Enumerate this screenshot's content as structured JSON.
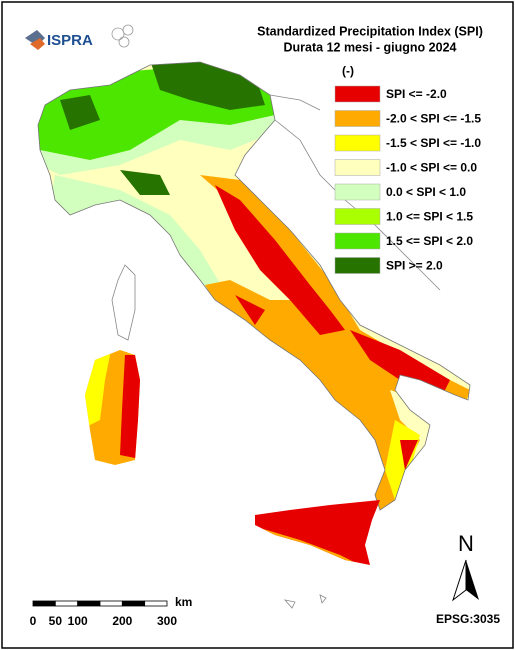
{
  "header": {
    "title": "Standardized Precipitation  Index (SPI)",
    "subtitle": "Durata 12 mesi - giugno 2024"
  },
  "logo": {
    "name": "ISPRA"
  },
  "legend": {
    "title": "(-)",
    "items": [
      {
        "label": "SPI <= -2.0",
        "color": "#e60000"
      },
      {
        "label": "-2.0 < SPI <= -1.5",
        "color": "#ffaa00"
      },
      {
        "label": "-1.5 < SPI <= -1.0",
        "color": "#ffff00"
      },
      {
        "label": "-1.0 < SPI <= 0.0",
        "color": "#ffffbe"
      },
      {
        "label": "0.0 < SPI < 1.0",
        "color": "#d3ffbe"
      },
      {
        "label": "1.0 <= SPI < 1.5",
        "color": "#aaff00"
      },
      {
        "label": "1.5 <= SPI < 2.0",
        "color": "#4ce600"
      },
      {
        "label": "SPI >= 2.0",
        "color": "#267300"
      }
    ]
  },
  "scale_bar": {
    "unit": "km",
    "ticks": [
      0,
      50,
      100,
      200,
      300
    ]
  },
  "north_arrow": "N",
  "projection": "EPSG:3035"
}
